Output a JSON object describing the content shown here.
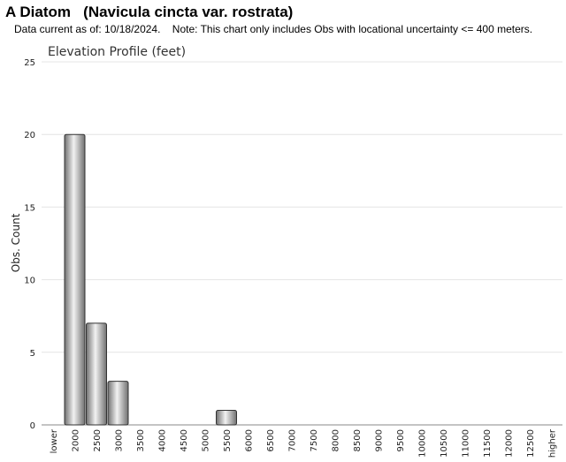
{
  "header": {
    "title": "A Diatom   (Navicula cincta var. rostrata)",
    "note": "Data current as of: 10/18/2024.    Note: This chart only includes Obs with locational uncertainty <= 400 meters."
  },
  "colors": {
    "bar_light": "#f2f2f2",
    "bar_dark": "#707070",
    "bar_stroke": "#333333",
    "grid": "#e4e4e4"
  },
  "chart_data": {
    "type": "bar",
    "title": "Elevation Profile (feet)",
    "xlabel": "",
    "ylabel": "Obs. Count",
    "ylim": [
      0,
      25
    ],
    "yticks": [
      0,
      5,
      10,
      15,
      20,
      25
    ],
    "grid": true,
    "categories": [
      "lower",
      "2000",
      "2500",
      "3000",
      "3500",
      "4000",
      "4500",
      "5000",
      "5500",
      "6000",
      "6500",
      "7000",
      "7500",
      "8000",
      "8500",
      "9000",
      "9500",
      "10000",
      "10500",
      "11000",
      "11500",
      "12000",
      "12500",
      "higher"
    ],
    "values": [
      0,
      20,
      7,
      3,
      0,
      0,
      0,
      0,
      1,
      0,
      0,
      0,
      0,
      0,
      0,
      0,
      0,
      0,
      0,
      0,
      0,
      0,
      0,
      0
    ]
  }
}
